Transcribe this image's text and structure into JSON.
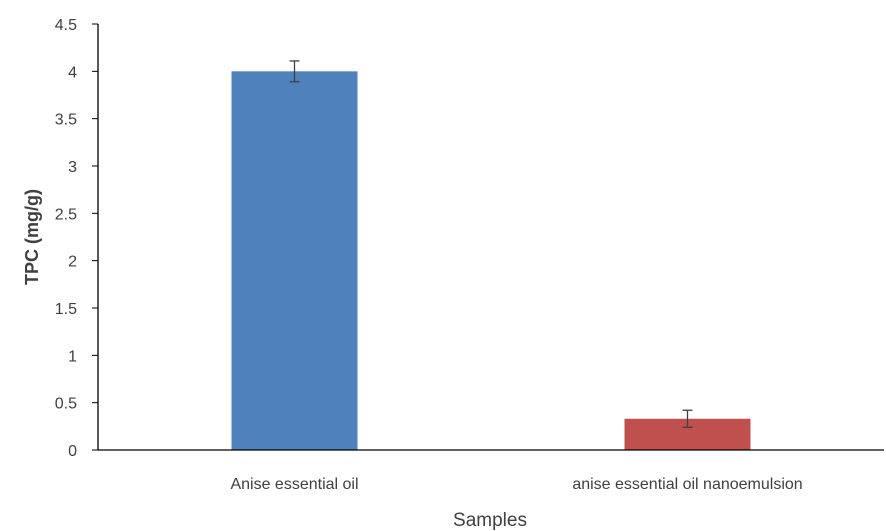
{
  "chart_data": {
    "type": "bar",
    "categories": [
      "Anise essential oil",
      "anise essential oil nanoemulsion"
    ],
    "values": [
      4.0,
      0.33
    ],
    "error": [
      0.11,
      0.09
    ],
    "colors": [
      "#4f81bd",
      "#c0504d"
    ],
    "xlabel": "Samples",
    "ylabel": "TPC  (mg/g)",
    "ylim": [
      0,
      4.5
    ],
    "yticks": [
      "0",
      "0.5",
      "1",
      "1.5",
      "2",
      "2.5",
      "3",
      "3.5",
      "4",
      "4.5"
    ],
    "grid": false
  }
}
